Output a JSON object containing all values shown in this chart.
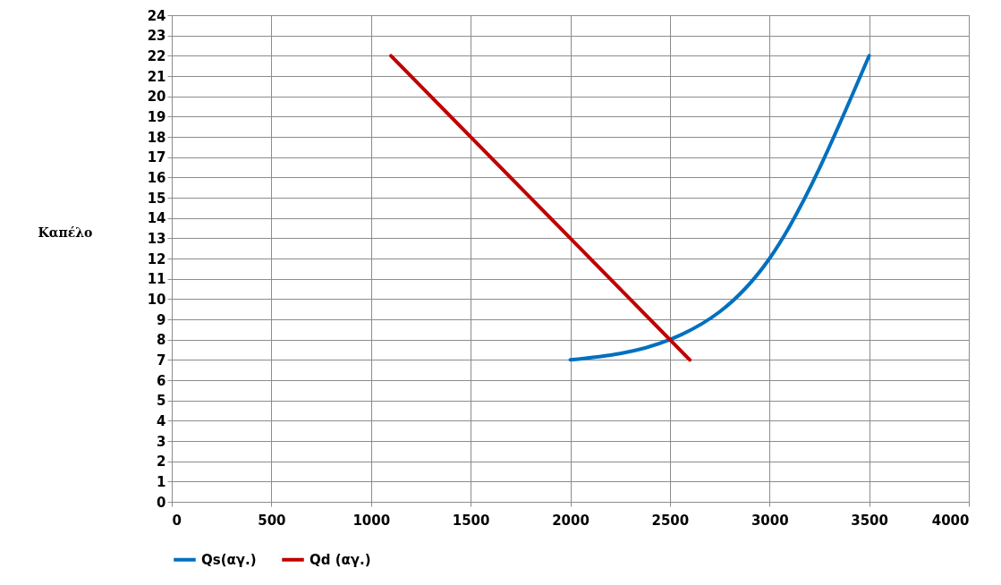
{
  "chart_data": {
    "type": "line",
    "ylabel": "Καπέλο",
    "series": [
      {
        "name": "Qs(αγ.)",
        "color": "#0070c0",
        "x": [
          2000,
          2500,
          3000,
          3500
        ],
        "values": [
          7,
          8,
          12,
          22
        ]
      },
      {
        "name": "Qd (αγ.)",
        "color": "#c00000",
        "x": [
          1100,
          2600
        ],
        "values": [
          22,
          7
        ]
      }
    ],
    "xlim": [
      0,
      4000
    ],
    "xticks": [
      0,
      500,
      1000,
      1500,
      2000,
      2500,
      3000,
      3500,
      4000
    ],
    "ylim": [
      0,
      24
    ],
    "yticks": [
      0,
      1,
      2,
      3,
      4,
      5,
      6,
      7,
      8,
      9,
      10,
      11,
      12,
      13,
      14,
      15,
      16,
      17,
      18,
      19,
      20,
      21,
      22,
      23,
      24
    ],
    "grid": true,
    "legend": "bottom",
    "marker": "none",
    "line_style": "solid"
  }
}
